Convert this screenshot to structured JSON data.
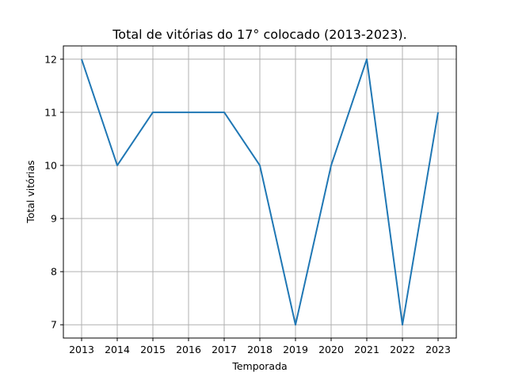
{
  "chart_data": {
    "type": "line",
    "title": "Total de vitórias do 17° colocado (2013-2023).",
    "xlabel": "Temporada",
    "ylabel": "Total vitórias",
    "x": [
      "2013",
      "2014",
      "2015",
      "2016",
      "2017",
      "2018",
      "2019",
      "2020",
      "2021",
      "2022",
      "2023"
    ],
    "y_ticks": [
      "7",
      "8",
      "9",
      "10",
      "11",
      "12"
    ],
    "series": [
      {
        "values": [
          12,
          10,
          11,
          11,
          11,
          10,
          7,
          10,
          12,
          7,
          11
        ],
        "color": "#1f77b4"
      }
    ],
    "ylim": [
      6.75,
      12.25
    ],
    "grid": true,
    "legend": "none"
  }
}
